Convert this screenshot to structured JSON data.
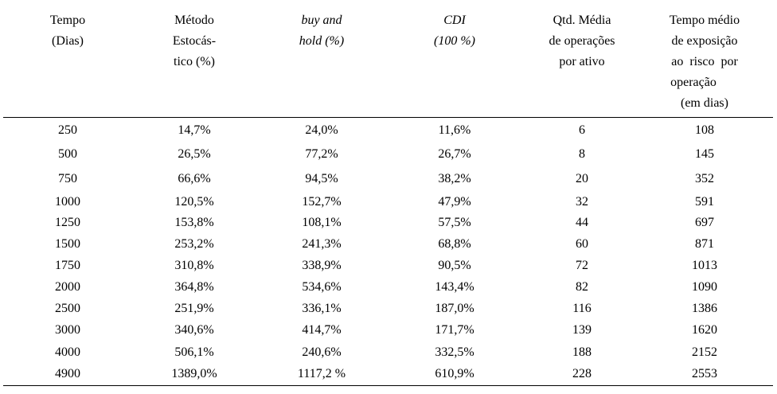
{
  "table": {
    "headers": [
      {
        "lines": [
          "Tempo",
          "(Dias)"
        ],
        "italic": false
      },
      {
        "lines": [
          "Método",
          "Estocás-",
          "tico (%)"
        ],
        "italic": false
      },
      {
        "lines": [
          "buy and",
          "hold (%)"
        ],
        "italic": true
      },
      {
        "lines": [
          "CDI",
          "(100 %)"
        ],
        "italic": true
      },
      {
        "lines": [
          "Qtd. Média",
          "de operações",
          "por ativo"
        ],
        "italic": false
      },
      {
        "lines": [
          "Tempo médio",
          "de exposição",
          "ao  risco  por",
          "operação",
          "(em dias)"
        ],
        "italic": false
      }
    ],
    "rows": [
      [
        "250",
        "14,7%",
        "24,0%",
        "11,6%",
        "6",
        "108"
      ],
      [
        "500",
        "26,5%",
        "77,2%",
        "26,7%",
        "8",
        "145"
      ],
      [
        "750",
        "66,6%",
        "94,5%",
        "38,2%",
        "20",
        "352"
      ],
      [
        "1000",
        "120,5%",
        "152,7%",
        "47,9%",
        "32",
        "591"
      ],
      [
        "1250",
        "153,8%",
        "108,1%",
        "57,5%",
        "44",
        "697"
      ],
      [
        "1500",
        "253,2%",
        "241,3%",
        "68,8%",
        "60",
        "871"
      ],
      [
        "1750",
        "310,8%",
        "338,9%",
        "90,5%",
        "72",
        "1013"
      ],
      [
        "2000",
        "364,8%",
        "534,6%",
        "143,4%",
        "82",
        "1090"
      ],
      [
        "2500",
        "251,9%",
        "336,1%",
        "187,0%",
        "116",
        "1386"
      ],
      [
        "3000",
        "340,6%",
        "414,7%",
        "171,7%",
        "139",
        "1620"
      ],
      [
        "4000",
        "506,1%",
        "240,6%",
        "332,5%",
        "188",
        "2152"
      ],
      [
        "4900",
        "1389,0%",
        "1117,2 %",
        "610,9%",
        "228",
        "2553"
      ]
    ]
  }
}
